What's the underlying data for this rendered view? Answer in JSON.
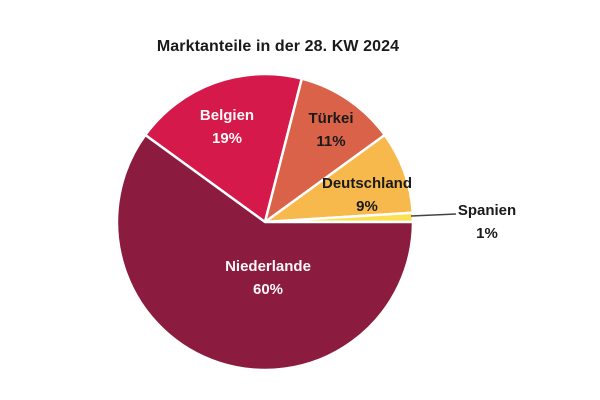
{
  "chart_data": {
    "type": "pie",
    "title": "Marktanteile in der 28. KW 2024",
    "unit": "%",
    "legend": "none",
    "start_angle_deg": 144,
    "direction": "clockwise",
    "slices": [
      {
        "label": "Belgien",
        "value": 19,
        "pct_label": "19%",
        "color": "#d51a4b",
        "text_color": "white"
      },
      {
        "label": "Türkei",
        "value": 11,
        "pct_label": "11%",
        "color": "#da6249",
        "text_color": "black"
      },
      {
        "label": "Deutschland",
        "value": 9,
        "pct_label": "9%",
        "color": "#f7b94c",
        "text_color": "black"
      },
      {
        "label": "Spanien",
        "value": 1,
        "pct_label": "1%",
        "color": "#fbe052",
        "text_color": "black",
        "label_outside": true,
        "leader_line": true
      },
      {
        "label": "Niederlande",
        "value": 60,
        "pct_label": "60%",
        "color": "#8c1c3f",
        "text_color": "white"
      }
    ],
    "leader_line_color": "#444444"
  }
}
